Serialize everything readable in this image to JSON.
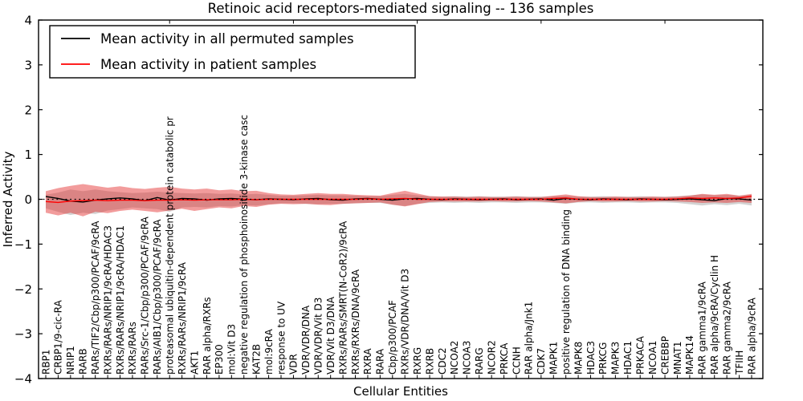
{
  "title": "Retinoic acid receptors-mediated signaling -- 136 samples",
  "axes": {
    "xlabel": "Cellular Entities",
    "ylabel": "Inferred Activity",
    "y_tick_labels": [
      "4",
      "3",
      "2",
      "1",
      "0",
      "−1",
      "−2",
      "−3",
      "−4"
    ],
    "y_tick_values": [
      4,
      3,
      2,
      1,
      0,
      -1,
      -2,
      -3,
      -4
    ],
    "ylim": [
      -4,
      4
    ]
  },
  "legend": {
    "items": [
      {
        "label": "Mean activity in all permuted samples",
        "color": "#000000"
      },
      {
        "label": "Mean activity in patient samples",
        "color": "#ff0000"
      }
    ]
  },
  "colors": {
    "permuted_line": "#000000",
    "patient_line": "#ff0000",
    "permuted_band": "rgba(130,130,130,0.35)",
    "patient_band": "rgba(226,36,36,0.45)",
    "zero_line": "#000000",
    "frame": "#000000"
  },
  "chart_data": {
    "type": "line",
    "title": "Retinoic acid receptors-mediated signaling -- 136 samples",
    "xlabel": "Cellular Entities",
    "ylabel": "Inferred Activity",
    "ylim": [
      -4,
      4
    ],
    "grid": false,
    "legend_position": "upper-left",
    "zero_reference_line": true,
    "categories": [
      "RBP1",
      "CRBP1/9-cic-RA",
      "NRIP1",
      "RARB",
      "RARs/TIF2/Cbp/p300/PCAF/9cRA",
      "RXRs/RARs/NRIP1/9cRA/HDAC3",
      "RXRs/RARs/NRIP1/9cRA/HDAC1",
      "RXRs/RARs",
      "RARs/Src-1/Cbp/p300/PCAF/9cRA",
      "RARs/AIB1/Cbp/p300/PCAF/9cRA",
      "proteasomal ubiquitin-dependent protein catabolic pr",
      "RXRs/RARs/NRIP1/9cRA",
      "AKT1",
      "RAR alpha/RXRs",
      "EP300",
      "mol:Vit D3",
      "negative regulation of phosphoinositide 3-kinase casc",
      "KAT2B",
      "mol:9cRA",
      "response to UV",
      "VDR",
      "VDR/VDR/DNA",
      "VDR/VDR/Vit D3",
      "VDR/Vit D3/DNA",
      "RXRs/RARs/SMRT(N-CoR2)/9cRA",
      "RXRs/RXRs/DNA/9cRA",
      "RXRA",
      "RARA",
      "Cbp/p300/PCAF",
      "RXRs/VDR/DNA/Vit D3",
      "RXRG",
      "RXRB",
      "CDC2",
      "NCOA2",
      "NCOA3",
      "RARG",
      "NCOR2",
      "PRKCA",
      "CCNH",
      "RAR alpha/Jnk1",
      "CDK7",
      "MAPK1",
      "positive regulation of DNA binding",
      "MAPK8",
      "HDAC3",
      "PRKCG",
      "MAPK3",
      "HDAC1",
      "PRKACA",
      "NCOA1",
      "CREBBP",
      "MNAT1",
      "MAPK14",
      "RAR gamma1/9cRA",
      "RAR alpha/9cRA/Cyclin H",
      "RAR gamma2/9cRA",
      "TFIIH",
      "RAR alpha/9cRA"
    ],
    "series": [
      {
        "name": "Mean activity in all permuted samples",
        "color": "#000000",
        "values": [
          0.06,
          0.02,
          -0.04,
          -0.06,
          -0.02,
          0.01,
          0.03,
          0.01,
          -0.03,
          0.04,
          -0.02,
          0.02,
          0.01,
          -0.02,
          0.01,
          0.02,
          0.0,
          -0.01,
          0.01,
          0.0,
          -0.01,
          0.01,
          0.02,
          -0.01,
          -0.02,
          0.01,
          0.02,
          0.0,
          -0.02,
          0.01,
          0.02,
          0.0,
          -0.01,
          0.01,
          0.0,
          -0.01,
          0.0,
          0.01,
          -0.01,
          0.0,
          0.01,
          -0.02,
          0.02,
          0.0,
          -0.01,
          0.01,
          0.0,
          -0.01,
          0.01,
          0.0,
          -0.01,
          0.0,
          0.01,
          -0.01,
          -0.03,
          0.02,
          0.01,
          -0.02
        ]
      },
      {
        "name": "Mean activity in patient samples",
        "color": "#ff0000",
        "values": [
          -0.05,
          -0.07,
          -0.04,
          -0.03,
          -0.02,
          -0.03,
          -0.02,
          -0.02,
          -0.03,
          -0.02,
          -0.02,
          -0.01,
          -0.02,
          -0.01,
          -0.01,
          -0.01,
          0.0,
          -0.01,
          0.0,
          0.0,
          0.0,
          0.0,
          0.0,
          0.0,
          0.0,
          0.0,
          0.01,
          0.0,
          0.01,
          0.02,
          0.0,
          0.0,
          0.0,
          0.0,
          0.0,
          0.0,
          0.0,
          0.0,
          0.0,
          0.0,
          0.0,
          0.02,
          0.03,
          0.0,
          0.0,
          0.0,
          0.0,
          0.0,
          0.0,
          0.0,
          0.0,
          0.01,
          0.03,
          0.02,
          0.03,
          0.02,
          0.03,
          0.07
        ]
      }
    ],
    "bands": [
      {
        "name": "permuted-samples-range",
        "color": "rgba(130,130,130,0.35)",
        "upper": [
          0.1,
          0.15,
          0.22,
          0.18,
          0.22,
          0.18,
          0.16,
          0.14,
          0.15,
          0.17,
          0.15,
          0.14,
          0.13,
          0.14,
          0.12,
          0.13,
          0.11,
          0.12,
          0.1,
          0.08,
          0.08,
          0.09,
          0.1,
          0.09,
          0.09,
          0.08,
          0.07,
          0.07,
          0.1,
          0.12,
          0.09,
          0.07,
          0.06,
          0.07,
          0.06,
          0.07,
          0.06,
          0.06,
          0.07,
          0.06,
          0.06,
          0.07,
          0.08,
          0.06,
          0.06,
          0.07,
          0.06,
          0.06,
          0.07,
          0.06,
          0.06,
          0.07,
          0.09,
          0.11,
          0.09,
          0.1,
          0.08,
          0.1
        ],
        "lower": [
          -0.2,
          -0.28,
          -0.35,
          -0.3,
          -0.33,
          -0.25,
          -0.22,
          -0.18,
          -0.2,
          -0.22,
          -0.28,
          -0.18,
          -0.17,
          -0.18,
          -0.15,
          -0.16,
          -0.13,
          -0.14,
          -0.11,
          -0.09,
          -0.09,
          -0.1,
          -0.11,
          -0.1,
          -0.1,
          -0.09,
          -0.08,
          -0.08,
          -0.12,
          -0.15,
          -0.1,
          -0.08,
          -0.07,
          -0.08,
          -0.07,
          -0.08,
          -0.07,
          -0.07,
          -0.08,
          -0.07,
          -0.07,
          -0.08,
          -0.1,
          -0.07,
          -0.07,
          -0.08,
          -0.07,
          -0.07,
          -0.08,
          -0.07,
          -0.07,
          -0.08,
          -0.11,
          -0.14,
          -0.11,
          -0.13,
          -0.1,
          -0.14
        ]
      },
      {
        "name": "patient-samples-range",
        "color": "rgba(226,36,36,0.45)",
        "upper": [
          0.18,
          0.25,
          0.3,
          0.34,
          0.3,
          0.26,
          0.29,
          0.25,
          0.23,
          0.26,
          0.28,
          0.24,
          0.22,
          0.24,
          0.2,
          0.22,
          0.18,
          0.19,
          0.14,
          0.11,
          0.1,
          0.12,
          0.14,
          0.12,
          0.12,
          0.1,
          0.09,
          0.08,
          0.14,
          0.19,
          0.13,
          0.07,
          0.06,
          0.06,
          0.05,
          0.06,
          0.05,
          0.05,
          0.06,
          0.05,
          0.05,
          0.08,
          0.11,
          0.07,
          0.05,
          0.05,
          0.06,
          0.05,
          0.05,
          0.06,
          0.05,
          0.06,
          0.08,
          0.12,
          0.1,
          0.12,
          0.08,
          0.12
        ],
        "lower": [
          -0.3,
          -0.36,
          -0.3,
          -0.38,
          -0.28,
          -0.31,
          -0.26,
          -0.23,
          -0.26,
          -0.29,
          -0.25,
          -0.21,
          -0.26,
          -0.22,
          -0.18,
          -0.2,
          -0.15,
          -0.17,
          -0.12,
          -0.1,
          -0.11,
          -0.1,
          -0.12,
          -0.13,
          -0.1,
          -0.09,
          -0.08,
          -0.07,
          -0.12,
          -0.16,
          -0.11,
          -0.06,
          -0.05,
          -0.05,
          -0.05,
          -0.05,
          -0.04,
          -0.05,
          -0.05,
          -0.04,
          -0.05,
          -0.07,
          -0.09,
          -0.06,
          -0.04,
          -0.05,
          -0.05,
          -0.04,
          -0.05,
          -0.05,
          -0.04,
          -0.05,
          -0.06,
          -0.08,
          -0.07,
          -0.08,
          -0.06,
          -0.08
        ]
      }
    ]
  }
}
